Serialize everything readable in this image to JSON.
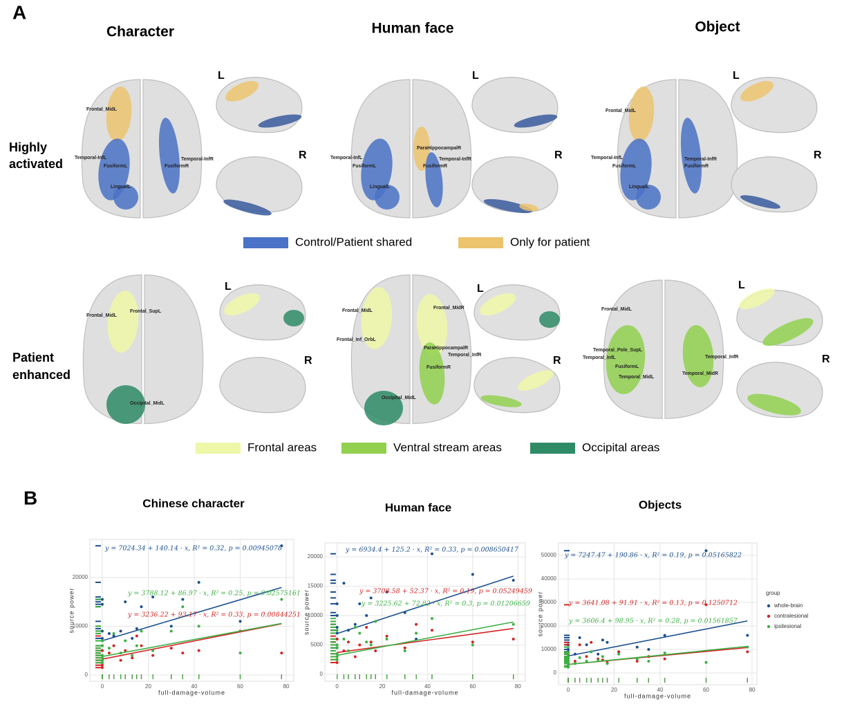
{
  "panel_a": {
    "label": "A",
    "column_titles": [
      "Character",
      "Human face",
      "Object"
    ],
    "row_labels": [
      [
        "Highly",
        "activated"
      ],
      [
        "Patient",
        "enhanced"
      ]
    ],
    "left_label": "L",
    "right_label": "R",
    "legend_top": [
      {
        "name": "Control/Patient shared",
        "color": "#4a72c6"
      },
      {
        "name": "Only for patient",
        "color": "#ecc46e"
      }
    ],
    "legend_bottom": [
      {
        "name": "Frontal areas",
        "color": "#eef8a8"
      },
      {
        "name": "Ventral stream areas",
        "color": "#92d050"
      },
      {
        "name": "Occipital areas",
        "color": "#2e8b66"
      }
    ],
    "brain_labels": [
      [
        "Frontal_MidL",
        "Temporal-InfL",
        "FusiformL",
        "LingualL",
        "Temporal-InfR",
        "FusiformR"
      ],
      [
        "Temporal-InfL",
        "FusiformL",
        "LingualL",
        "ParaHippocampalR",
        "Temporal-InfR",
        "FusiformR"
      ],
      [
        "Frontal_MidL",
        "Temporal-InfL",
        "FusiformL",
        "LingualL",
        "Temporal-InfR",
        "FusiformR"
      ],
      [
        "Frontal_MidL",
        "Frontal_SupL",
        "Occipital_MidL"
      ],
      [
        "Frontal_MidL",
        "Frontal_Inf_OrbL",
        "Frontal_MidR",
        "ParaHippocampalR",
        "Temporal_InfR",
        "FusiformR",
        "Occipital_MidL"
      ],
      [
        "Frontal_MidL",
        "Temporal_Pole_SupL",
        "Temporal_InfL",
        "FusiformL",
        "Temporal_MidL",
        "Temporal_InfR",
        "Temporal_MidR"
      ]
    ]
  },
  "panel_b_label": "B",
  "chart_data": [
    {
      "type": "scatter",
      "title": "Chinese character",
      "xlabel": "full-damage-volume",
      "ylabel": "source power",
      "x": [
        0,
        0,
        0,
        0,
        0,
        0,
        3,
        5,
        8,
        10,
        13,
        15,
        17,
        22,
        30,
        35,
        42,
        60,
        78
      ],
      "xlim": [
        -5.4,
        83.3
      ],
      "xticks": [
        0,
        20,
        40,
        60,
        80
      ],
      "ylim": [
        -1300,
        27800
      ],
      "yticks": [
        0,
        10000,
        20000
      ],
      "grid": true,
      "series": [
        {
          "color": "#1a4f8f",
          "values": [
            9000,
            7500,
            6000,
            5000,
            14500,
            15500,
            8500,
            8000,
            9000,
            15000,
            7500,
            9500,
            14000,
            16000,
            10000,
            15500,
            19000,
            11000,
            26500
          ],
          "fit_x": [
            0,
            78
          ],
          "fit_values": [
            7024,
            17955
          ]
        },
        {
          "color": "#d42424",
          "values": [
            3000,
            2500,
            2000,
            4000,
            1500,
            5000,
            4500,
            6000,
            3000,
            5000,
            3500,
            8000,
            6000,
            4000,
            5500,
            4500,
            5000,
            9000,
            4500
          ],
          "fit_x": [
            0,
            78
          ],
          "fit_values": [
            3236,
            10503
          ]
        },
        {
          "color": "#3cb043",
          "values": [
            4000,
            3500,
            6000,
            3000,
            2500,
            7000,
            5500,
            8500,
            4500,
            7000,
            4000,
            6000,
            9000,
            5000,
            9000,
            14000,
            10000,
            4500,
            15500
          ],
          "fit_x": [
            0,
            78
          ],
          "fit_values": [
            3788,
            10572
          ]
        }
      ],
      "annotations": [
        "y = 7024.34 + 140.14 · x,  R² = 0.32,  p = 0.00945078",
        "y = 3788.12 + 86.97 · x,  R² = 0.25,  p = 0.02575161",
        "y = 3236.22 + 93.17 · x,  R² = 0.33,  p = 0.00844251"
      ]
    },
    {
      "type": "scatter",
      "title": "Human face",
      "xlabel": "full-damage-volume",
      "ylabel": "source power",
      "x": [
        0,
        0,
        0,
        0,
        0,
        0,
        3,
        5,
        8,
        10,
        13,
        15,
        17,
        22,
        30,
        35,
        42,
        60,
        78
      ],
      "xlim": [
        -5.4,
        83.3
      ],
      "xticks": [
        0,
        20,
        40,
        60,
        80
      ],
      "ylim": [
        -1180,
        22350
      ],
      "yticks": [
        0,
        5000,
        10000,
        15000,
        20000
      ],
      "grid": true,
      "series": [
        {
          "color": "#1a4f8f",
          "values": [
            8000,
            7000,
            12000,
            6000,
            4500,
            10000,
            15500,
            7500,
            8500,
            12000,
            10000,
            13000,
            9000,
            14000,
            10500,
            6000,
            20500,
            17000,
            16000
          ],
          "fit_x": [
            0,
            78
          ],
          "fit_values": [
            6934,
            16700
          ]
        },
        {
          "color": "#d42424",
          "values": [
            3500,
            3000,
            2500,
            5000,
            2000,
            6000,
            4000,
            5500,
            3000,
            5000,
            8000,
            5500,
            4000,
            6500,
            4500,
            8500,
            7500,
            5500,
            6000
          ],
          "fit_x": [
            0,
            78
          ],
          "fit_values": [
            3709,
            7794
          ]
        },
        {
          "color": "#3cb043",
          "values": [
            4500,
            3500,
            5000,
            2500,
            3000,
            7500,
            6000,
            4000,
            8000,
            7000,
            5500,
            5000,
            9000,
            6000,
            4000,
            7000,
            9500,
            5000,
            8500
          ],
          "fit_x": [
            0,
            78
          ],
          "fit_values": [
            3226,
            8906
          ]
        }
      ],
      "annotations": [
        "y = 6934.4 + 125.2 · x,  R² = 0.33,  p = 0.008650417",
        "y = 3708.58 + 52.37 · x,  R² = 0.19,  p = 0.05249459",
        "y = 3225.62 + 72.82 · x,  R² = 0.3,  p = 0.01206659"
      ]
    },
    {
      "type": "scatter",
      "title": "Objects",
      "xlabel": "full-damage-volume",
      "ylabel": "source power",
      "x": [
        0,
        0,
        0,
        0,
        0,
        0,
        3,
        5,
        8,
        10,
        13,
        15,
        17,
        22,
        30,
        35,
        42,
        60,
        78
      ],
      "xlim": [
        -4.2,
        82.1
      ],
      "xticks": [
        0,
        20,
        40,
        60,
        80
      ],
      "ylim": [
        -5000,
        55300
      ],
      "yticks": [
        0,
        10000,
        20000,
        30000,
        40000,
        50000
      ],
      "grid": true,
      "legend_title": "group",
      "legend": "right",
      "series": [
        {
          "name": "whole-brain",
          "color": "#1a4f8f",
          "values": [
            7000,
            9000,
            10000,
            5000,
            6000,
            12000,
            8000,
            15000,
            12000,
            9000,
            8000,
            14000,
            13000,
            9000,
            11000,
            10000,
            16000,
            52000,
            16000
          ],
          "fit_x": [
            0,
            78
          ],
          "fit_values": [
            7247,
            22134
          ]
        },
        {
          "name": "contralesional",
          "color": "#d42424",
          "values": [
            3000,
            5000,
            2500,
            6000,
            4000,
            8000,
            5000,
            12000,
            7000,
            13000,
            6000,
            5500,
            4500,
            9000,
            5000,
            7000,
            6000,
            29000,
            9000
          ],
          "fit_x": [
            0,
            78
          ],
          "fit_values": [
            3641,
            10810
          ]
        },
        {
          "name": "ipsilesional",
          "color": "#3cb043",
          "values": [
            4000,
            3000,
            6000,
            2500,
            5000,
            7000,
            4000,
            6500,
            5000,
            9000,
            5500,
            7000,
            4000,
            8000,
            6000,
            5000,
            8500,
            4500,
            11000
          ],
          "fit_x": [
            0,
            78
          ],
          "fit_values": [
            3606,
            11324
          ]
        }
      ],
      "annotations": [
        "y = 7247.47 + 190.86 · x,  R² = 0.19,  p = 0.05165822",
        "y = 3641.08 + 91.91 · x,  R² = 0.13,  p = 0.1250712",
        "y = 3606.4 + 98.95 · x,  R² = 0.28,  p = 0.01561857"
      ]
    }
  ]
}
